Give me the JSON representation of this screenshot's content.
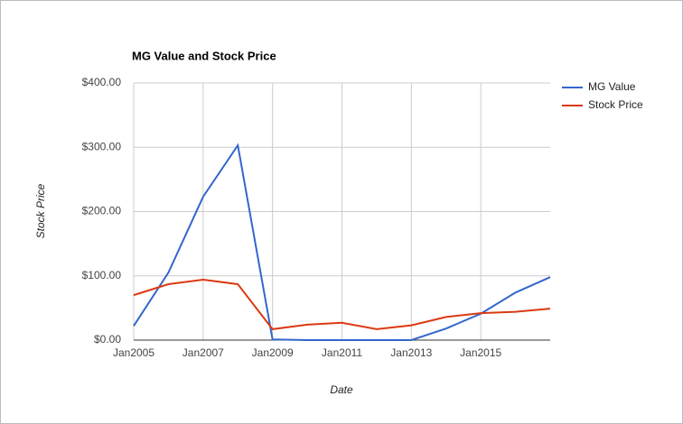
{
  "chart_data": {
    "type": "line",
    "title": "MG Value and Stock Price",
    "x_label": "Date",
    "y_label": "Stock Price",
    "x": [
      2005,
      2006,
      2007,
      2008,
      2009,
      2010,
      2011,
      2012,
      2013,
      2014,
      2015,
      2016,
      2017
    ],
    "series": [
      {
        "name": "MG Value",
        "color": "#3366cc",
        "values": [
          22,
          105,
          223,
          303,
          1,
          0,
          0,
          0,
          0,
          18,
          41,
          74,
          98
        ]
      },
      {
        "name": "Stock Price",
        "color": "#dc3912",
        "values": [
          70,
          87,
          94,
          87,
          17,
          24,
          27,
          17,
          23,
          36,
          42,
          44,
          49
        ]
      }
    ],
    "xlim": [
      2005,
      2017
    ],
    "xticks": [
      {
        "value": 2005,
        "label": "Jan2005"
      },
      {
        "value": 2007,
        "label": "Jan2007"
      },
      {
        "value": 2009,
        "label": "Jan2009"
      },
      {
        "value": 2011,
        "label": "Jan2011"
      },
      {
        "value": 2013,
        "label": "Jan2013"
      },
      {
        "value": 2015,
        "label": "Jan2015"
      }
    ],
    "ylim": [
      0,
      400
    ],
    "yticks": [
      {
        "value": 0,
        "label": "$0.00"
      },
      {
        "value": 100,
        "label": "$100.00"
      },
      {
        "value": 200,
        "label": "$200.00"
      },
      {
        "value": 300,
        "label": "$300.00"
      },
      {
        "value": 400,
        "label": "$400.00"
      }
    ],
    "grid": true,
    "legend": "right"
  }
}
